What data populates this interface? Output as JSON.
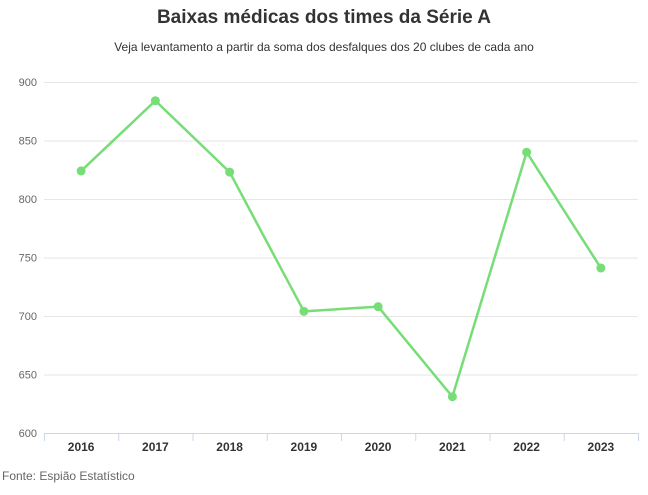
{
  "chart_data": {
    "type": "line",
    "title": "Baixas médicas dos times da Série A",
    "subtitle": "Veja levantamento a partir da soma dos desfalques dos 20 clubes de cada ano",
    "source": "Fonte: Espião Estatístico",
    "categories": [
      "2016",
      "2017",
      "2018",
      "2019",
      "2020",
      "2021",
      "2022",
      "2023"
    ],
    "series": [
      {
        "name": "Baixas médicas",
        "values": [
          824,
          884,
          823,
          704,
          708,
          631,
          840,
          741
        ]
      }
    ],
    "xlabel": "",
    "ylabel": "",
    "ylim": [
      600,
      900
    ],
    "ytick_step": 50,
    "grid": true,
    "legend": "none",
    "colors": {
      "line": "#77dd77",
      "marker": "#77dd77",
      "grid": "#e6e6e6",
      "axis_line": "#ccd6eb",
      "tick": "#ccd6eb",
      "ytick_label": "#666666",
      "xtick_label": "#333333",
      "title": "#333333",
      "subtitle": "#333333",
      "source": "#666666",
      "background": "#ffffff"
    }
  }
}
